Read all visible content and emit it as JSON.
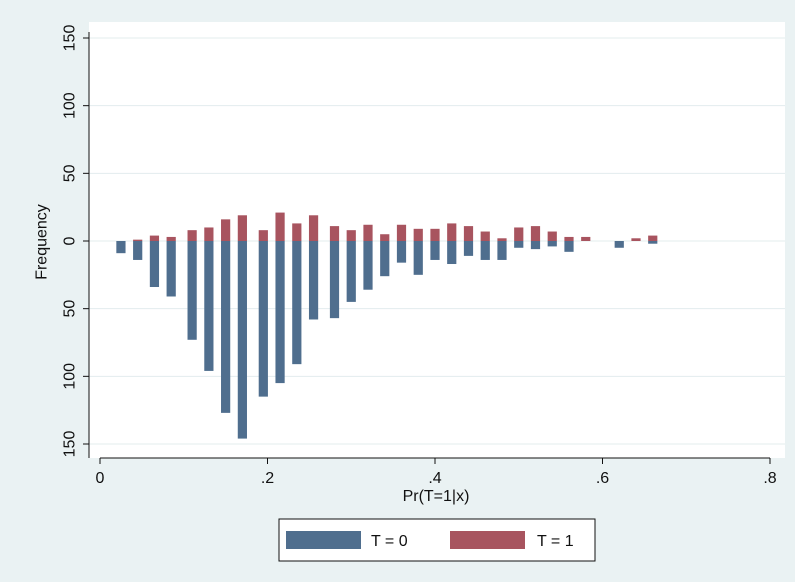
{
  "chart_data": {
    "type": "bar",
    "title": "",
    "xlabel": "Pr(T=1|x)",
    "ylabel": "Frequency",
    "xlim": [
      0,
      0.8
    ],
    "ylim": [
      -150,
      150
    ],
    "x_ticks": [
      {
        "value": 0,
        "label": "0"
      },
      {
        "value": 0.2,
        "label": ".2"
      },
      {
        "value": 0.4,
        "label": ".4"
      },
      {
        "value": 0.6,
        "label": ".6"
      },
      {
        "value": 0.8,
        "label": ".8"
      }
    ],
    "y_ticks": [
      {
        "value": 150,
        "label": "150"
      },
      {
        "value": 100,
        "label": "100"
      },
      {
        "value": 50,
        "label": "50"
      },
      {
        "value": 0,
        "label": "0"
      },
      {
        "value": -50,
        "label": "50"
      },
      {
        "value": -100,
        "label": "100"
      },
      {
        "value": -150,
        "label": "150"
      }
    ],
    "grid": true,
    "legend_position": "bottom",
    "bar_width": 0.011,
    "x": [
      0.025,
      0.045,
      0.065,
      0.085,
      0.11,
      0.13,
      0.15,
      0.17,
      0.195,
      0.215,
      0.235,
      0.255,
      0.28,
      0.3,
      0.32,
      0.34,
      0.36,
      0.38,
      0.4,
      0.42,
      0.44,
      0.46,
      0.48,
      0.5,
      0.52,
      0.54,
      0.56,
      0.58,
      0.6,
      0.62,
      0.64,
      0.66
    ],
    "series": [
      {
        "name": "T = 0",
        "color": "#4f6e8e",
        "values": [
          9,
          14,
          34,
          41,
          73,
          96,
          127,
          146,
          115,
          105,
          91,
          58,
          57,
          45,
          36,
          26,
          16,
          25,
          14,
          17,
          11,
          14,
          14,
          5,
          6,
          4,
          8,
          0,
          0,
          5,
          0,
          2
        ]
      },
      {
        "name": "T = 1",
        "color": "#a8545f",
        "values": [
          0,
          1,
          4,
          3,
          8,
          10,
          16,
          19,
          8,
          21,
          13,
          19,
          11,
          8,
          12,
          5,
          12,
          9,
          9,
          13,
          11,
          7,
          2,
          10,
          11,
          7,
          3,
          3,
          0,
          0,
          2,
          4
        ]
      }
    ]
  },
  "legend": {
    "items": [
      {
        "label": "T = 0",
        "color": "#4f6e8e"
      },
      {
        "label": "T = 1",
        "color": "#a8545f"
      }
    ]
  }
}
